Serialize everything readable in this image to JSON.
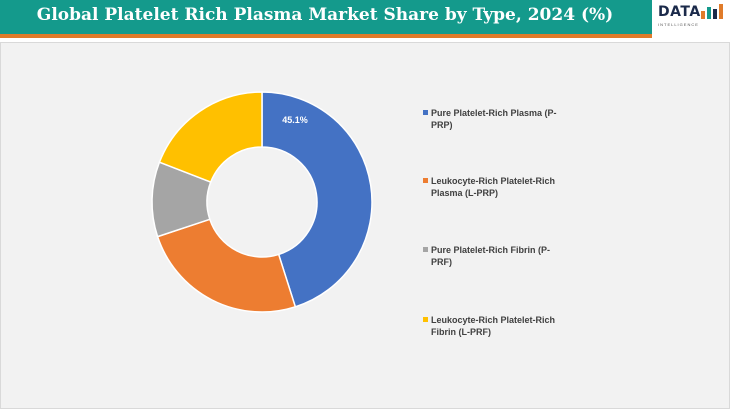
{
  "header": {
    "title": "Global Platelet Rich Plasma Market Share by Type, 2024 (%)",
    "logo_text": "DATA",
    "logo_subtext": "INTELLIGENCE"
  },
  "colors": {
    "header_bg": "#149a8c",
    "accent": "#e07b2a"
  },
  "chart_data": {
    "type": "pie",
    "variant": "donut",
    "title": "Global Platelet Rich Plasma Market Share by Type, 2024 (%)",
    "categories": [
      "Pure Platelet-Rich Plasma (P-PRP)",
      "Leukocyte-Rich Platelet-Rich Plasma (L-PRP)",
      "Pure Platelet-Rich Fibrin (P-PRF)",
      "Leukocyte-Rich Platelet-Rich Fibrin (L-PRF)"
    ],
    "values": [
      45.1,
      24.8,
      11.0,
      19.1
    ],
    "colors": [
      "#4472c4",
      "#ed7d31",
      "#a5a5a5",
      "#ffc000"
    ],
    "data_labels": [
      "45.1%",
      "",
      "",
      ""
    ],
    "legend_position": "right"
  },
  "legend": {
    "items": [
      {
        "line1": "Pure Platelet-Rich Plasma (P-",
        "line2": "PRP)"
      },
      {
        "line1": "Leukocyte-Rich Platelet-Rich",
        "line2": "Plasma (L-PRP)"
      },
      {
        "line1": "Pure Platelet-Rich Fibrin (P-",
        "line2": "PRF)"
      },
      {
        "line1": "Leukocyte-Rich Platelet-Rich",
        "line2": "Fibrin (L-PRF)"
      }
    ]
  }
}
